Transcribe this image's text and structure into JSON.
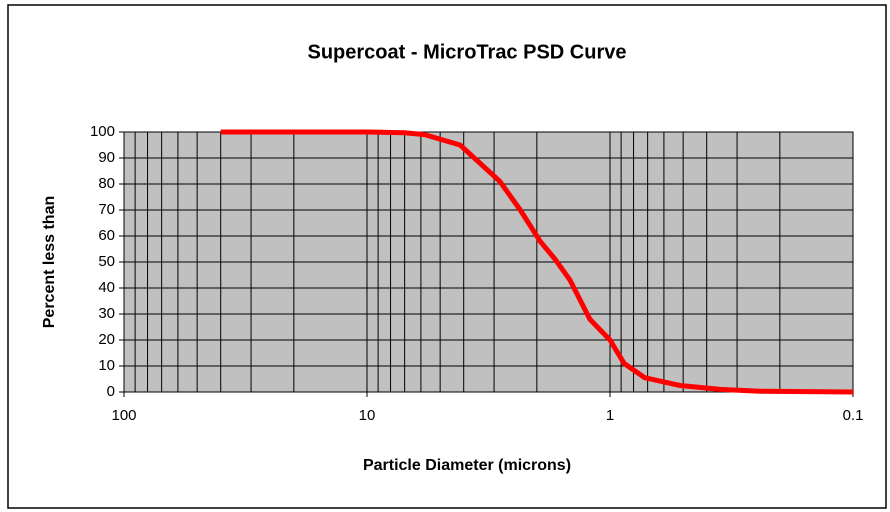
{
  "chart_data": {
    "type": "line",
    "title": "Supercoat - MicroTrac PSD Curve",
    "x_label": "Particle Diameter (microns)",
    "y_label": "Percent less than",
    "x": [
      40,
      20,
      10,
      7,
      5.8,
      4.14,
      2.84,
      2.34,
      1.94,
      1.68,
      1.46,
      1.21,
      1,
      0.875,
      0.72,
      0.515,
      0.352,
      0.241,
      0.1
    ],
    "series": [
      {
        "name": "PSD",
        "color": "#ff0000",
        "values": [
          100,
          100,
          100,
          99.7,
          99,
          95,
          81,
          70,
          58,
          51,
          43,
          28,
          20,
          11,
          5.5,
          2.5,
          1,
          0.3,
          0
        ]
      }
    ],
    "xlim": [
      100,
      0.1
    ],
    "x_log": true,
    "x_reversed": true,
    "xticks": [
      100,
      10,
      1,
      0.1
    ],
    "x_minor_gridlines": [
      90,
      80,
      70,
      60,
      50,
      40,
      30,
      20,
      9,
      8,
      7,
      6,
      5,
      4,
      3,
      2,
      0.9,
      0.8,
      0.7,
      0.6,
      0.5,
      0.4,
      0.3,
      0.2
    ],
    "ylim": [
      0,
      100
    ],
    "yticks": [
      0,
      10,
      20,
      30,
      40,
      50,
      60,
      70,
      80,
      90,
      100
    ],
    "grid": true,
    "plot_background": "#c0c0c0"
  }
}
